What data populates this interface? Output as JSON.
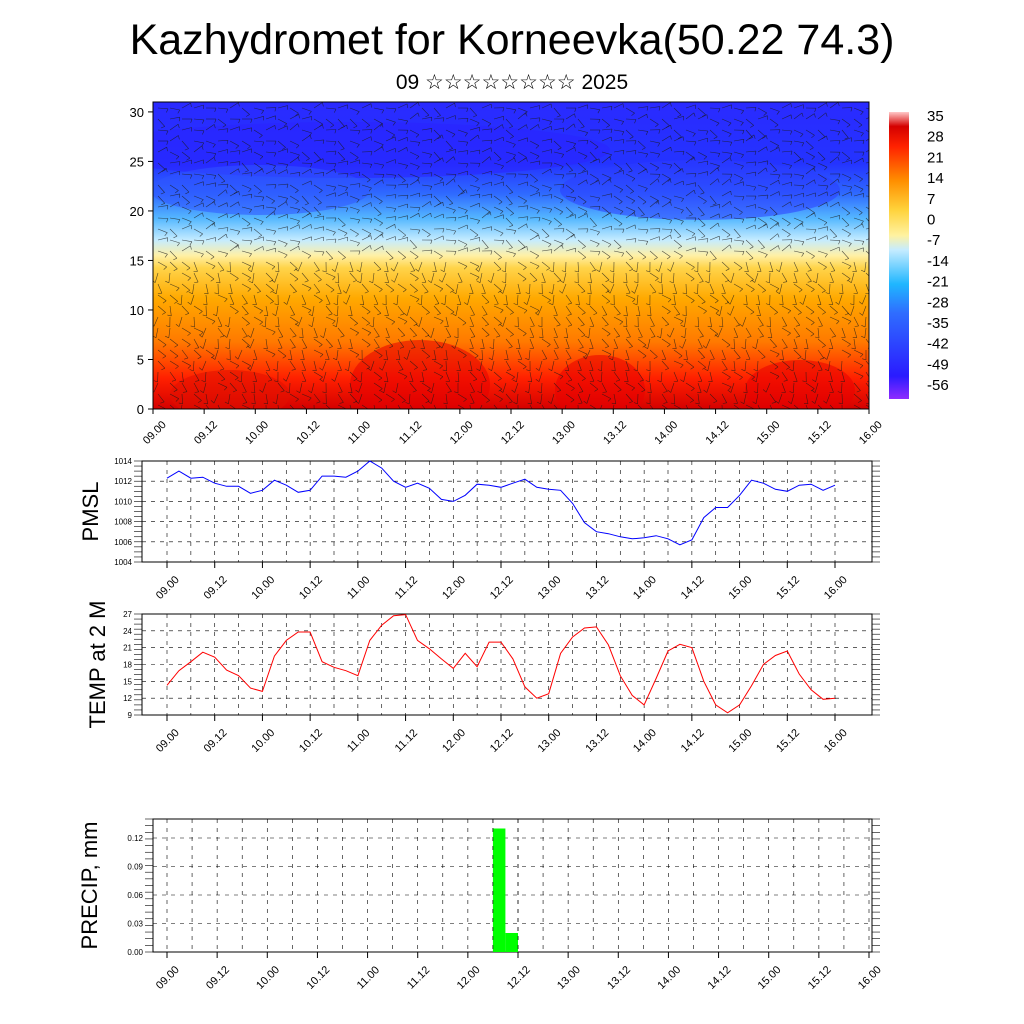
{
  "title": "Kazhydromet for Korneevka(50.22 74.3)",
  "subtitle": "09 ☆☆☆☆☆☆☆☆ 2025",
  "chart_data": [
    {
      "type": "heatmap",
      "title": "Kazhydromet for Korneevka(50.22 74.3)",
      "subtitle": "09 ☆☆☆☆☆☆☆☆ 2025",
      "x_ticks": [
        "09.00",
        "09.12",
        "10.00",
        "10.12",
        "11.00",
        "11.12",
        "12.00",
        "12.12",
        "13.00",
        "13.12",
        "14.00",
        "14.12",
        "15.00",
        "15.12",
        "16.00"
      ],
      "y_ticks": [
        0,
        5,
        10,
        15,
        20,
        25,
        30
      ],
      "ylim": [
        0,
        31
      ],
      "colorbar_labels": [
        "35",
        "28",
        "21",
        "14",
        "7",
        "0",
        "-7",
        "-14",
        "-21",
        "-28",
        "-35",
        "-42",
        "-49",
        "-56"
      ],
      "colorbar_range": [
        -60,
        38
      ],
      "overlay": "wind barbs",
      "colors": {
        "cold": "#3a1fff",
        "mid_cold": "#29b8ff",
        "neutral": "#ffe79a",
        "warm": "#ffa000",
        "hot": "#e00000"
      }
    },
    {
      "type": "line",
      "ylabel": "PMSL",
      "x_ticks": [
        "09.00",
        "09.12",
        "10.00",
        "10.12",
        "11.00",
        "11.12",
        "12.00",
        "12.12",
        "13.00",
        "13.12",
        "14.00",
        "14.12",
        "15.00",
        "15.12",
        "16.00"
      ],
      "y_ticks": [
        1004,
        1006,
        1008,
        1010,
        1012,
        1014
      ],
      "ylim": [
        1004,
        1014
      ],
      "x_hours": [
        0,
        3,
        6,
        9,
        12,
        15,
        18,
        21,
        24,
        27,
        30,
        33,
        36,
        39,
        42,
        45,
        48,
        51,
        54,
        57,
        60,
        63,
        66,
        69,
        72,
        75,
        78,
        81,
        84,
        87,
        90,
        93,
        96,
        99,
        102,
        105,
        108,
        111,
        114,
        117,
        120,
        123,
        126,
        129,
        132,
        135,
        138,
        141,
        144,
        147,
        150,
        153,
        156,
        159,
        162,
        165,
        168
      ],
      "series": [
        {
          "color": "#0000ff",
          "values": [
            1012.3,
            1013,
            1012.3,
            1012.4,
            1011.8,
            1011.5,
            1011.5,
            1010.8,
            1011.1,
            1012.1,
            1011.6,
            1010.9,
            1011.1,
            1012.5,
            1012.5,
            1012.4,
            1013,
            1014,
            1013.3,
            1012,
            1011.4,
            1011.8,
            1011.3,
            1010.2,
            1010,
            1010.6,
            1011.7,
            1011.6,
            1011.4,
            1011.8,
            1012.2,
            1011.4,
            1011.2,
            1011.1,
            1009.8,
            1007.9,
            1007,
            1006.8,
            1006.5,
            1006.3,
            1006.4,
            1006.6,
            1006.3,
            1005.7,
            1006.2,
            1008.4,
            1009.4,
            1009.4,
            1010.6,
            1012.1,
            1011.8,
            1011.2,
            1011,
            1011.6,
            1011.7,
            1011.1,
            1011.6
          ]
        }
      ]
    },
    {
      "type": "line",
      "ylabel": "TEMP at 2 M",
      "x_ticks": [
        "09.00",
        "09.12",
        "10.00",
        "10.12",
        "11.00",
        "11.12",
        "12.00",
        "12.12",
        "13.00",
        "13.12",
        "14.00",
        "14.12",
        "15.00",
        "15.12",
        "16.00"
      ],
      "y_ticks": [
        9,
        12,
        15,
        18,
        21,
        24,
        27
      ],
      "ylim": [
        9,
        27
      ],
      "x_hours": [
        0,
        3,
        6,
        9,
        12,
        15,
        18,
        21,
        24,
        27,
        30,
        33,
        36,
        39,
        42,
        45,
        48,
        51,
        54,
        57,
        60,
        63,
        66,
        69,
        72,
        75,
        78,
        81,
        84,
        87,
        90,
        93,
        96,
        99,
        102,
        105,
        108,
        111,
        114,
        117,
        120,
        123,
        126,
        129,
        132,
        135,
        138,
        141,
        144,
        147,
        150,
        153,
        156,
        159,
        162,
        165,
        168
      ],
      "series": [
        {
          "color": "#ff0000",
          "values": [
            14.3,
            16.9,
            18.5,
            20.2,
            19.3,
            17,
            16,
            13.8,
            13.2,
            19.5,
            22.3,
            23.8,
            23.8,
            18.5,
            17.5,
            16.9,
            16,
            22.3,
            25,
            26.7,
            26.9,
            22.3,
            20.8,
            19,
            17.3,
            20,
            17.6,
            22,
            22,
            19,
            14,
            12,
            12.8,
            20,
            22.9,
            24.5,
            24.7,
            21.5,
            16,
            12.5,
            10.8,
            15.5,
            20.4,
            21.6,
            21,
            15,
            10.8,
            9.4,
            10.8,
            14.2,
            18,
            19.6,
            20.4,
            16.3,
            13.5,
            11.8,
            12
          ]
        }
      ]
    },
    {
      "type": "bar",
      "ylabel": "PRECIP, mm",
      "x_ticks": [
        "09.00",
        "09.12",
        "10.00",
        "10.12",
        "11.00",
        "11.12",
        "12.00",
        "12.12",
        "13.00",
        "13.12",
        "14.00",
        "14.12",
        "15.00",
        "15.12",
        "16.00"
      ],
      "y_ticks": [
        "0.00",
        "0.03",
        "0.06",
        "0.09",
        "0.12"
      ],
      "ylim": [
        0,
        0.14
      ],
      "bars": [
        {
          "start_hour": 78,
          "end_hour": 81,
          "value": 0.13
        },
        {
          "start_hour": 81,
          "end_hour": 84,
          "value": 0.02
        }
      ],
      "bar_color": "#00ff00"
    }
  ]
}
